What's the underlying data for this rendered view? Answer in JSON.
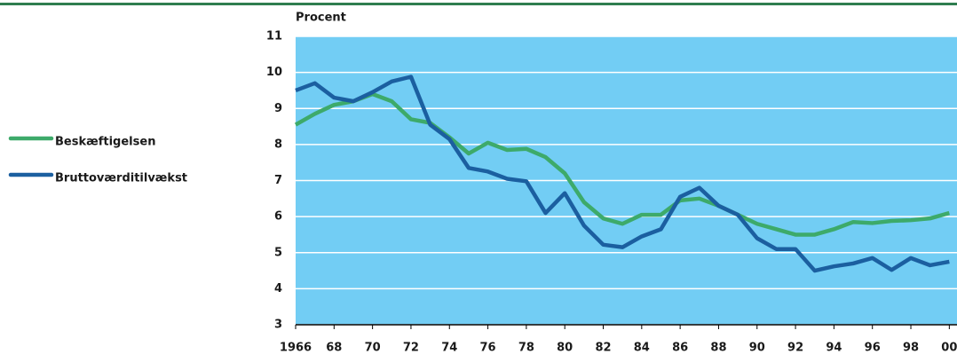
{
  "chart_data": {
    "type": "line",
    "y_label": "Procent",
    "x": [
      1966,
      1967,
      1968,
      1969,
      1970,
      1971,
      1972,
      1973,
      1974,
      1975,
      1976,
      1977,
      1978,
      1979,
      1980,
      1981,
      1982,
      1983,
      1984,
      1985,
      1986,
      1987,
      1988,
      1989,
      1990,
      1991,
      1992,
      1993,
      1994,
      1995,
      1996,
      1997,
      1998,
      1999,
      2000
    ],
    "series": [
      {
        "name": "Beskæftigelsen",
        "color": "#3daa6a",
        "values": [
          8.55,
          8.85,
          9.1,
          9.2,
          9.4,
          9.2,
          8.7,
          8.6,
          8.2,
          7.75,
          8.05,
          7.85,
          7.88,
          7.65,
          7.2,
          6.4,
          5.95,
          5.8,
          6.05,
          6.05,
          6.45,
          6.5,
          6.3,
          6.05,
          5.8,
          5.65,
          5.5,
          5.5,
          5.65,
          5.85,
          5.82,
          5.88,
          5.9,
          5.95,
          6.1
        ]
      },
      {
        "name": "Bruttoværditilvækst",
        "color": "#1b5fa0",
        "values": [
          9.5,
          9.7,
          9.3,
          9.2,
          9.45,
          9.75,
          9.88,
          8.55,
          8.15,
          7.35,
          7.25,
          7.05,
          6.98,
          6.1,
          6.65,
          5.75,
          5.22,
          5.15,
          5.45,
          5.65,
          6.55,
          6.8,
          6.3,
          6.05,
          5.4,
          5.1,
          5.1,
          4.5,
          4.62,
          4.7,
          4.85,
          4.52,
          4.85,
          4.65,
          4.75
        ]
      }
    ],
    "xlim": [
      1966,
      2000.4
    ],
    "ylim": [
      3,
      11
    ],
    "xticks": [
      1966,
      {
        "value": 1968,
        "label": "68"
      },
      {
        "value": 1970,
        "label": "70"
      },
      {
        "value": 1972,
        "label": "72"
      },
      {
        "value": 1974,
        "label": "74"
      },
      {
        "value": 1976,
        "label": "76"
      },
      {
        "value": 1978,
        "label": "78"
      },
      {
        "value": 1980,
        "label": "80"
      },
      {
        "value": 1982,
        "label": "82"
      },
      {
        "value": 1984,
        "label": "84"
      },
      {
        "value": 1986,
        "label": "86"
      },
      {
        "value": 1988,
        "label": "88"
      },
      {
        "value": 1990,
        "label": "90"
      },
      {
        "value": 1992,
        "label": "92"
      },
      {
        "value": 1994,
        "label": "94"
      },
      {
        "value": 1996,
        "label": "96"
      },
      {
        "value": 1998,
        "label": "98"
      },
      {
        "value": 2000,
        "label": "00"
      }
    ],
    "yticks": [
      3,
      4,
      5,
      6,
      7,
      8,
      9,
      10,
      11
    ],
    "grid": true,
    "background": "#72cdf4"
  }
}
